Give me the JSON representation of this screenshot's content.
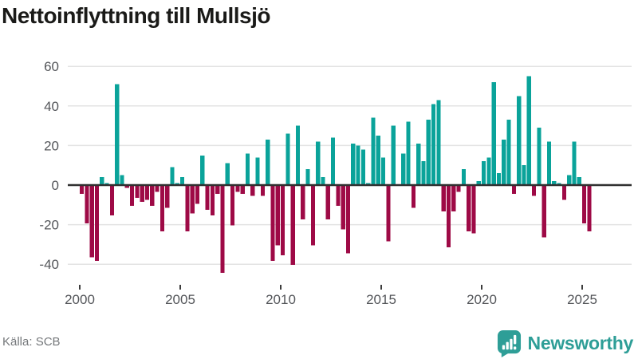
{
  "header": {
    "title": "Nettoinflyttning till Mullsjö"
  },
  "footer": {
    "source": "Källa: SCB",
    "brand": "Newsworthy"
  },
  "colors": {
    "positive_bar": "#0AA39A",
    "negative_bar": "#9E0A46",
    "brand_teal": "#2E9E97",
    "gridline": "#E3E3E3",
    "zero_line": "#303030",
    "axis_text": "#54565A",
    "title_text": "#1A1A18",
    "source_text": "#75787B"
  },
  "chart_data": {
    "type": "bar",
    "title": "Nettoinflyttning till Mullsjö",
    "frequency": "quarterly",
    "start": "2000-Q1",
    "end": "2025-Q2",
    "x_ticks": [
      2000,
      2005,
      2010,
      2015,
      2020,
      2025
    ],
    "y_ticks": [
      60,
      40,
      20,
      0,
      -20,
      -40
    ],
    "ylim": [
      -49,
      65
    ],
    "grid": "horizontal",
    "legend": "none",
    "positive_color_meaning": "net in-migration",
    "negative_color_meaning": "net out-migration",
    "years": [
      {
        "year": 2000,
        "values": [
          -4,
          -19,
          -36,
          -38
        ]
      },
      {
        "year": 2001,
        "values": [
          4,
          1,
          -15,
          51
        ]
      },
      {
        "year": 2002,
        "values": [
          5,
          -1,
          -10,
          -6
        ]
      },
      {
        "year": 2003,
        "values": [
          -8,
          -7,
          -10,
          -3
        ]
      },
      {
        "year": 2004,
        "values": [
          -23,
          -11,
          9,
          1
        ]
      },
      {
        "year": 2005,
        "values": [
          4,
          -23,
          -14,
          -9
        ]
      },
      {
        "year": 2006,
        "values": [
          15,
          -12,
          -15,
          -4
        ]
      },
      {
        "year": 2007,
        "values": [
          -44,
          11,
          -20,
          -3
        ]
      },
      {
        "year": 2008,
        "values": [
          -4,
          16,
          -5,
          14
        ]
      },
      {
        "year": 2009,
        "values": [
          -5,
          23,
          -38,
          -30
        ]
      },
      {
        "year": 2010,
        "values": [
          -35,
          26,
          -40,
          30
        ]
      },
      {
        "year": 2011,
        "values": [
          -17,
          8,
          -30,
          22
        ]
      },
      {
        "year": 2012,
        "values": [
          4,
          -17,
          24,
          -10
        ]
      },
      {
        "year": 2013,
        "values": [
          -22,
          -34,
          21,
          20
        ]
      },
      {
        "year": 2014,
        "values": [
          18,
          1,
          34,
          25
        ]
      },
      {
        "year": 2015,
        "values": [
          14,
          -28,
          30,
          0
        ]
      },
      {
        "year": 2016,
        "values": [
          16,
          32,
          -11,
          21
        ]
      },
      {
        "year": 2017,
        "values": [
          12,
          33,
          41,
          43
        ]
      },
      {
        "year": 2018,
        "values": [
          -13,
          -31,
          -13,
          -3
        ]
      },
      {
        "year": 2019,
        "values": [
          8,
          -23,
          -24,
          2
        ]
      },
      {
        "year": 2020,
        "values": [
          12,
          14,
          52,
          6
        ]
      },
      {
        "year": 2021,
        "values": [
          23,
          33,
          -4,
          45
        ]
      },
      {
        "year": 2022,
        "values": [
          10,
          55,
          -5,
          29
        ]
      },
      {
        "year": 2023,
        "values": [
          -26,
          22,
          2,
          1
        ]
      },
      {
        "year": 2024,
        "values": [
          -7,
          5,
          22,
          4
        ]
      },
      {
        "year": 2025,
        "values": [
          -19,
          -23
        ]
      }
    ]
  }
}
